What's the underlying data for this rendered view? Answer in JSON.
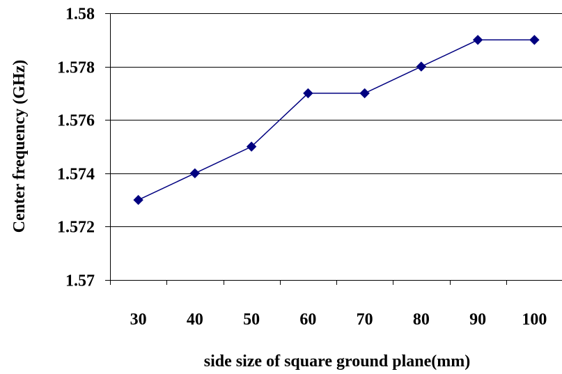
{
  "chart_data": {
    "type": "line",
    "title": "",
    "xlabel": "side size of square ground plane(mm)",
    "ylabel": "Center frequency (GHz)",
    "categories": [
      "30",
      "40",
      "50",
      "60",
      "70",
      "80",
      "90",
      "100"
    ],
    "series": [
      {
        "values": [
          1.573,
          1.574,
          1.575,
          1.577,
          1.577,
          1.578,
          1.579,
          1.579
        ]
      }
    ],
    "ylim": [
      1.57,
      1.58
    ],
    "yticks": [
      1.57,
      1.572,
      1.574,
      1.576,
      1.578,
      1.58
    ],
    "ytick_labels": [
      "1.57",
      "1.572",
      "1.574",
      "1.576",
      "1.578",
      "1.58"
    ],
    "grid": "horizontal",
    "colors": {
      "series": "#000080",
      "grid": "#000000"
    }
  }
}
